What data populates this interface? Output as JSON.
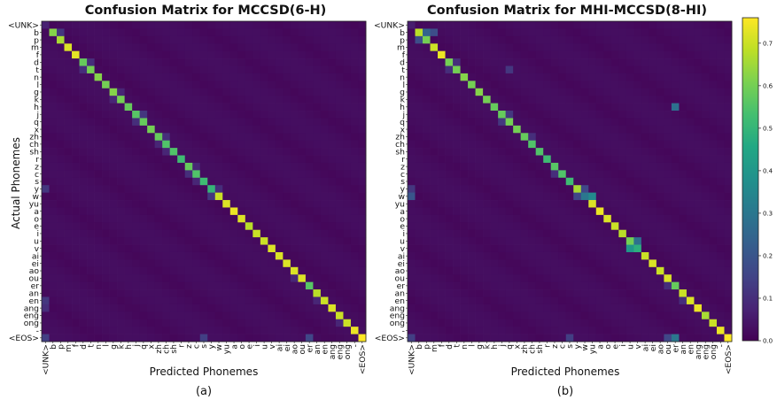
{
  "figure": {
    "panel_labels": [
      "(a)",
      "(b)"
    ],
    "xlabel": "Predicted Phonemes",
    "ylabel": "Actual Phonemes",
    "colorbar": {
      "ticks": [
        0.0,
        0.1,
        0.2,
        0.3,
        0.4,
        0.5,
        0.6,
        0.7
      ],
      "tick_labels": [
        "0.0",
        "0.1",
        "0.2",
        "0.3",
        "0.4",
        "0.5",
        "0.6",
        "0.7"
      ],
      "vmin": 0.0,
      "vmax": 0.76,
      "colormap": "viridis"
    }
  },
  "chart_data": [
    {
      "type": "heatmap",
      "title": "Confusion Matrix for MCCSD(6-H)",
      "xlabel": "Predicted Phonemes",
      "ylabel": "Actual Phonemes",
      "labels": [
        "<UNK>",
        "b",
        "p",
        "m",
        "f",
        "d",
        "t",
        "n",
        "l",
        "g",
        "k",
        "h",
        "j",
        "q",
        "x",
        "zh",
        "ch",
        "sh",
        "r",
        "z",
        "c",
        "s",
        "y",
        "w",
        "yu",
        "a",
        "o",
        "e",
        "i",
        "u",
        "v",
        "ai",
        "ei",
        "ao",
        "ou",
        "er",
        "an",
        "en",
        "ang",
        "eng",
        "ong",
        "-",
        "<EOS>"
      ],
      "diagonal": [
        0.07,
        0.62,
        0.66,
        0.72,
        0.73,
        0.58,
        0.6,
        0.62,
        0.6,
        0.62,
        0.6,
        0.58,
        0.56,
        0.58,
        0.6,
        0.58,
        0.55,
        0.55,
        0.52,
        0.58,
        0.55,
        0.52,
        0.5,
        0.7,
        0.72,
        0.74,
        0.72,
        0.68,
        0.7,
        0.7,
        0.72,
        0.72,
        0.72,
        0.72,
        0.72,
        0.56,
        0.68,
        0.7,
        0.72,
        0.7,
        0.7,
        0.74,
        0.76
      ],
      "off_diagonal": [
        {
          "row": "b",
          "col": "p",
          "value": 0.12
        },
        {
          "row": "d",
          "col": "t",
          "value": 0.1
        },
        {
          "row": "t",
          "col": "d",
          "value": 0.1
        },
        {
          "row": "g",
          "col": "k",
          "value": 0.08
        },
        {
          "row": "k",
          "col": "g",
          "value": 0.08
        },
        {
          "row": "j",
          "col": "q",
          "value": 0.12
        },
        {
          "row": "q",
          "col": "j",
          "value": 0.1
        },
        {
          "row": "zh",
          "col": "ch",
          "value": 0.1
        },
        {
          "row": "ch",
          "col": "zh",
          "value": 0.08
        },
        {
          "row": "sh",
          "col": "ch",
          "value": 0.08
        },
        {
          "row": "z",
          "col": "c",
          "value": 0.08
        },
        {
          "row": "c",
          "col": "z",
          "value": 0.1
        },
        {
          "row": "s",
          "col": "c",
          "value": 0.08
        },
        {
          "row": "y",
          "col": "<UNK>",
          "value": 0.12
        },
        {
          "row": "y",
          "col": "w",
          "value": 0.1
        },
        {
          "row": "w",
          "col": "y",
          "value": 0.12
        },
        {
          "row": "ou",
          "col": "ao",
          "value": 0.08
        },
        {
          "row": "en",
          "col": "an",
          "value": 0.08
        },
        {
          "row": "en",
          "col": "<UNK>",
          "value": 0.12
        },
        {
          "row": "ang",
          "col": "<UNK>",
          "value": 0.1
        },
        {
          "row": "ong",
          "col": "eng",
          "value": 0.08
        },
        {
          "row": "<EOS>",
          "col": "<UNK>",
          "value": 0.14
        },
        {
          "row": "<EOS>",
          "col": "er",
          "value": 0.16
        },
        {
          "row": "<EOS>",
          "col": "s",
          "value": 0.14
        }
      ]
    },
    {
      "type": "heatmap",
      "title": "Confusion Matrix for MHI-MCCSD(8-HI)",
      "xlabel": "Predicted Phonemes",
      "ylabel": "",
      "labels": [
        "<UNK>",
        "b",
        "p",
        "m",
        "f",
        "d",
        "t",
        "n",
        "l",
        "g",
        "k",
        "h",
        "j",
        "q",
        "x",
        "zh",
        "ch",
        "sh",
        "r",
        "z",
        "c",
        "s",
        "y",
        "w",
        "yu",
        "a",
        "o",
        "e",
        "i",
        "u",
        "v",
        "ai",
        "ei",
        "ao",
        "ou",
        "er",
        "an",
        "en",
        "ang",
        "eng",
        "ong",
        "-",
        "<EOS>"
      ],
      "diagonal": [
        0.06,
        0.68,
        0.6,
        0.7,
        0.74,
        0.6,
        0.6,
        0.62,
        0.6,
        0.62,
        0.6,
        0.58,
        0.58,
        0.6,
        0.6,
        0.58,
        0.55,
        0.55,
        0.52,
        0.56,
        0.55,
        0.52,
        0.66,
        0.3,
        0.72,
        0.74,
        0.72,
        0.7,
        0.68,
        0.6,
        0.48,
        0.7,
        0.72,
        0.7,
        0.72,
        0.58,
        0.7,
        0.72,
        0.74,
        0.66,
        0.7,
        0.74,
        0.76
      ],
      "off_diagonal": [
        {
          "row": "b",
          "col": "p",
          "value": 0.24
        },
        {
          "row": "b",
          "col": "m",
          "value": 0.18
        },
        {
          "row": "p",
          "col": "b",
          "value": 0.18
        },
        {
          "row": "d",
          "col": "t",
          "value": 0.1
        },
        {
          "row": "t",
          "col": "d",
          "value": 0.1
        },
        {
          "row": "t",
          "col": "q",
          "value": 0.12
        },
        {
          "row": "h",
          "col": "er",
          "value": 0.28
        },
        {
          "row": "j",
          "col": "q",
          "value": 0.12
        },
        {
          "row": "q",
          "col": "j",
          "value": 0.12
        },
        {
          "row": "zh",
          "col": "ch",
          "value": 0.1
        },
        {
          "row": "c",
          "col": "z",
          "value": 0.1
        },
        {
          "row": "y",
          "col": "<UNK>",
          "value": 0.12
        },
        {
          "row": "y",
          "col": "w",
          "value": 0.16
        },
        {
          "row": "w",
          "col": "yu",
          "value": 0.36
        },
        {
          "row": "w",
          "col": "<UNK>",
          "value": 0.2
        },
        {
          "row": "w",
          "col": "y",
          "value": 0.16
        },
        {
          "row": "u",
          "col": "v",
          "value": 0.28
        },
        {
          "row": "v",
          "col": "u",
          "value": 0.4
        },
        {
          "row": "er",
          "col": "ou",
          "value": 0.1
        },
        {
          "row": "en",
          "col": "an",
          "value": 0.1
        },
        {
          "row": "<EOS>",
          "col": "er",
          "value": 0.3
        },
        {
          "row": "<EOS>",
          "col": "<UNK>",
          "value": 0.14
        },
        {
          "row": "<EOS>",
          "col": "s",
          "value": 0.14
        },
        {
          "row": "<EOS>",
          "col": "ou",
          "value": 0.16
        }
      ]
    }
  ]
}
